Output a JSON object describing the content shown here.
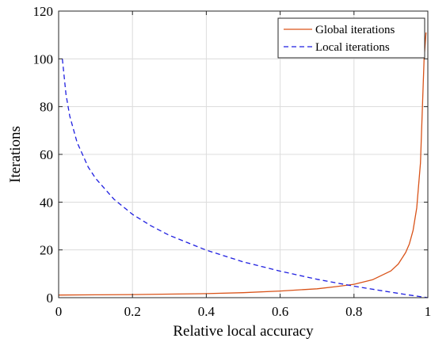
{
  "chart_data": {
    "type": "line",
    "title": "",
    "xlabel": "Relative local accuracy",
    "ylabel": "Iterations",
    "xlim": [
      0,
      1
    ],
    "ylim": [
      0,
      120
    ],
    "xticks": [
      0,
      0.2,
      0.4,
      0.6,
      0.8,
      1
    ],
    "xtick_labels": [
      "0",
      "0.2",
      "0.4",
      "0.6",
      "0.8",
      "1"
    ],
    "yticks": [
      0,
      20,
      40,
      60,
      80,
      100,
      120
    ],
    "ytick_labels": [
      "0",
      "20",
      "40",
      "60",
      "80",
      "100",
      "120"
    ],
    "grid": true,
    "legend_position": "top-right",
    "series": [
      {
        "name": "Global iterations",
        "color": "#d95319",
        "style": "solid",
        "x": [
          0,
          0.1,
          0.2,
          0.3,
          0.4,
          0.5,
          0.6,
          0.7,
          0.75,
          0.8,
          0.85,
          0.9,
          0.92,
          0.94,
          0.95,
          0.96,
          0.97,
          0.98,
          0.99,
          0.995
        ],
        "y": [
          1.1,
          1.2,
          1.3,
          1.5,
          1.7,
          2.1,
          2.8,
          3.7,
          4.6,
          5.6,
          7.5,
          11.2,
          14.1,
          18.9,
          22.5,
          28.2,
          37.6,
          56.4,
          100,
          111
        ]
      },
      {
        "name": "Local iterations",
        "color": "#1f1fe0",
        "style": "dashed",
        "x": [
          0.01,
          0.02,
          0.03,
          0.05,
          0.08,
          0.1,
          0.15,
          0.2,
          0.25,
          0.3,
          0.4,
          0.5,
          0.6,
          0.7,
          0.8,
          0.9,
          0.95,
          1.0
        ],
        "y": [
          100,
          85.1,
          76.1,
          65.0,
          54.7,
          50.0,
          41.2,
          34.9,
          30.1,
          26.1,
          19.9,
          15.0,
          11.1,
          7.7,
          4.8,
          2.3,
          1.1,
          0
        ]
      }
    ]
  }
}
